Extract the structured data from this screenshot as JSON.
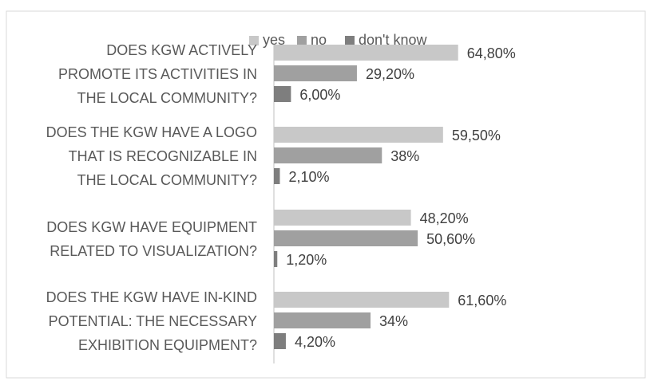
{
  "chart_data": {
    "type": "bar",
    "orientation": "horizontal",
    "title": "",
    "categories": [
      [
        "DOES KGW ACTIVELY",
        "PROMOTE ITS ACTIVITIES IN",
        "THE LOCAL COMMUNITY?"
      ],
      [
        "DOES THE KGW HAVE A LOGO",
        "THAT IS RECOGNIZABLE IN",
        "THE LOCAL COMMUNITY?"
      ],
      [
        "DOES KGW HAVE EQUIPMENT",
        "RELATED TO VISUALIZATION?"
      ],
      [
        "DOES THE KGW HAVE IN-KIND",
        "POTENTIAL: THE NECESSARY",
        "EXHIBITION EQUIPMENT?"
      ]
    ],
    "series": [
      {
        "name": "yes",
        "color": "#c8c8c8",
        "values": [
          64.8,
          59.5,
          48.2,
          61.6
        ],
        "labels": [
          "64,80%",
          "59,50%",
          "48,20%",
          "61,60%"
        ]
      },
      {
        "name": "no",
        "color": "#a0a0a0",
        "values": [
          29.2,
          38,
          50.6,
          34
        ],
        "labels": [
          "29,20%",
          "38%",
          "50,60%",
          "34%"
        ]
      },
      {
        "name": "don't know",
        "color": "#7e7e7e",
        "values": [
          6.0,
          2.1,
          1.2,
          4.2
        ],
        "labels": [
          "6,00%",
          "2,10%",
          "1,20%",
          "4,20%"
        ]
      }
    ],
    "xlim": [
      0,
      100
    ],
    "grid": false,
    "legend_position": "top"
  }
}
